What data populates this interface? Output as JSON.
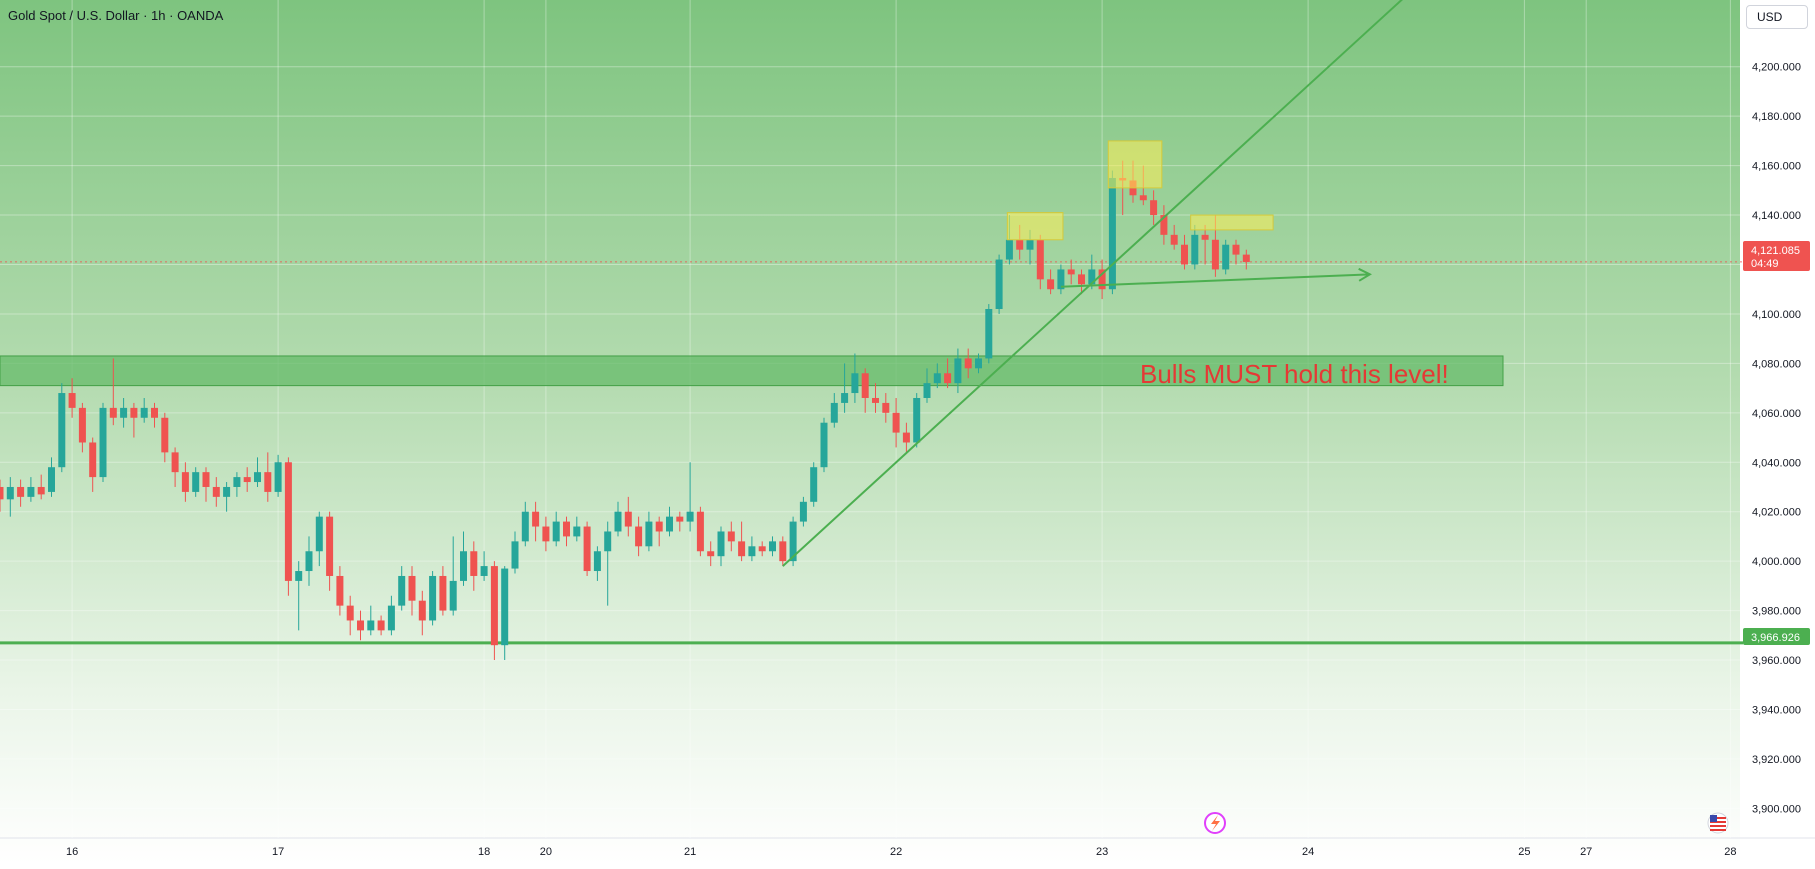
{
  "header": {
    "title": "Gold Spot / U.S. Dollar · 1h · OANDA",
    "currency_button": "USD"
  },
  "price_tag": {
    "price": "4,121.085",
    "countdown": "04:49"
  },
  "support_tag": {
    "price": "3,966.926"
  },
  "annotation": {
    "text": "Bulls MUST hold this level!"
  },
  "icons": {
    "bolt": "lightning-icon",
    "flag": "us-flag-icon"
  },
  "colors": {
    "up": "#26a69a",
    "down": "#ef5350",
    "trend": "#4caf50",
    "zone": "#66bb6a",
    "highlight": "#ffee58",
    "annotation": "#e53935"
  },
  "chart_data": {
    "type": "candlestick",
    "title": "Gold Spot / U.S. Dollar · 1h · OANDA",
    "ylim": [
      3888,
      4227
    ],
    "y_ticks": [
      {
        "v": 3900,
        "label": "3,900.000"
      },
      {
        "v": 3920,
        "label": "3,920.000"
      },
      {
        "v": 3940,
        "label": "3,940.000"
      },
      {
        "v": 3960,
        "label": "3,960.000"
      },
      {
        "v": 3980,
        "label": "3,980.000"
      },
      {
        "v": 4000,
        "label": "4,000.000"
      },
      {
        "v": 4020,
        "label": "4,020.000"
      },
      {
        "v": 4040,
        "label": "4,040.000"
      },
      {
        "v": 4060,
        "label": "4,060.000"
      },
      {
        "v": 4080,
        "label": "4,080.000"
      },
      {
        "v": 4100,
        "label": "4,100.000"
      },
      {
        "v": 4120,
        "label": "4,120.000"
      },
      {
        "v": 4140,
        "label": "4,140.000"
      },
      {
        "v": 4160,
        "label": "4,160.000"
      },
      {
        "v": 4180,
        "label": "4,180.000"
      },
      {
        "v": 4200,
        "label": "4,200.000"
      }
    ],
    "x_ticks": [
      {
        "i": 7,
        "label": "16"
      },
      {
        "i": 27,
        "label": "17"
      },
      {
        "i": 47,
        "label": "18"
      },
      {
        "i": 53,
        "label": "20"
      },
      {
        "i": 67,
        "label": "21"
      },
      {
        "i": 87,
        "label": "22"
      },
      {
        "i": 107,
        "label": "23"
      },
      {
        "i": 127,
        "label": "24"
      },
      {
        "i": 148,
        "label": "25"
      },
      {
        "i": 154,
        "label": "27"
      },
      {
        "i": 168,
        "label": "28"
      }
    ],
    "current_price": 4121.085,
    "support_level": 3966.926,
    "resistance_zone": [
      4071,
      4083
    ],
    "candles": [
      [
        4030,
        4025,
        4033,
        4020
      ],
      [
        4025,
        4030,
        4034,
        4018
      ],
      [
        4030,
        4026,
        4033,
        4022
      ],
      [
        4026,
        4030,
        4034,
        4024
      ],
      [
        4030,
        4027,
        4035,
        4025
      ],
      [
        4028,
        4038,
        4042,
        4026
      ],
      [
        4038,
        4068,
        4072,
        4036
      ],
      [
        4068,
        4062,
        4074,
        4058
      ],
      [
        4062,
        4048,
        4064,
        4044
      ],
      [
        4048,
        4034,
        4050,
        4028
      ],
      [
        4034,
        4062,
        4064,
        4032
      ],
      [
        4062,
        4058,
        4082,
        4055
      ],
      [
        4058,
        4062,
        4066,
        4054
      ],
      [
        4062,
        4058,
        4064,
        4050
      ],
      [
        4058,
        4062,
        4066,
        4056
      ],
      [
        4062,
        4058,
        4064,
        4054
      ],
      [
        4058,
        4044,
        4060,
        4040
      ],
      [
        4044,
        4036,
        4046,
        4030
      ],
      [
        4036,
        4028,
        4040,
        4024
      ],
      [
        4028,
        4036,
        4038,
        4026
      ],
      [
        4036,
        4030,
        4038,
        4024
      ],
      [
        4030,
        4026,
        4034,
        4022
      ],
      [
        4026,
        4030,
        4032,
        4020
      ],
      [
        4030,
        4034,
        4036,
        4026
      ],
      [
        4034,
        4032,
        4038,
        4028
      ],
      [
        4032,
        4036,
        4042,
        4030
      ],
      [
        4036,
        4028,
        4044,
        4024
      ],
      [
        4028,
        4040,
        4043,
        4026
      ],
      [
        4040,
        3992,
        4042,
        3986
      ],
      [
        3992,
        3996,
        4000,
        3972
      ],
      [
        3996,
        4004,
        4010,
        3990
      ],
      [
        4004,
        4018,
        4020,
        3998
      ],
      [
        4018,
        3994,
        4020,
        3988
      ],
      [
        3994,
        3982,
        3998,
        3978
      ],
      [
        3982,
        3976,
        3986,
        3970
      ],
      [
        3976,
        3972,
        3980,
        3968
      ],
      [
        3972,
        3976,
        3982,
        3970
      ],
      [
        3976,
        3972,
        3978,
        3970
      ],
      [
        3972,
        3982,
        3986,
        3970
      ],
      [
        3982,
        3994,
        3998,
        3980
      ],
      [
        3994,
        3984,
        3998,
        3978
      ],
      [
        3984,
        3976,
        3988,
        3970
      ],
      [
        3976,
        3994,
        3996,
        3974
      ],
      [
        3994,
        3980,
        3998,
        3978
      ],
      [
        3980,
        3992,
        4010,
        3978
      ],
      [
        3992,
        4004,
        4012,
        3990
      ],
      [
        4004,
        3994,
        4008,
        3988
      ],
      [
        3994,
        3998,
        4004,
        3992
      ],
      [
        3998,
        3966,
        4000,
        3960
      ],
      [
        3966,
        3997,
        3998,
        3960
      ],
      [
        3997,
        4008,
        4012,
        3995
      ],
      [
        4008,
        4020,
        4024,
        4006
      ],
      [
        4020,
        4014,
        4024,
        4008
      ],
      [
        4014,
        4008,
        4018,
        4004
      ],
      [
        4008,
        4016,
        4020,
        4006
      ],
      [
        4016,
        4010,
        4018,
        4006
      ],
      [
        4010,
        4014,
        4018,
        4008
      ],
      [
        4014,
        3996,
        4016,
        3994
      ],
      [
        3996,
        4004,
        4006,
        3992
      ],
      [
        4004,
        4012,
        4016,
        3982
      ],
      [
        4012,
        4020,
        4024,
        4010
      ],
      [
        4020,
        4014,
        4026,
        4010
      ],
      [
        4014,
        4006,
        4018,
        4002
      ],
      [
        4006,
        4016,
        4020,
        4004
      ],
      [
        4016,
        4012,
        4018,
        4006
      ],
      [
        4012,
        4018,
        4022,
        4010
      ],
      [
        4018,
        4016,
        4020,
        4012
      ],
      [
        4016,
        4020,
        4040,
        4012
      ],
      [
        4020,
        4004,
        4022,
        4002
      ],
      [
        4004,
        4002,
        4008,
        3998
      ],
      [
        4002,
        4012,
        4014,
        3998
      ],
      [
        4012,
        4008,
        4016,
        4004
      ],
      [
        4008,
        4002,
        4016,
        4000
      ],
      [
        4002,
        4006,
        4010,
        4000
      ],
      [
        4006,
        4004,
        4008,
        4002
      ],
      [
        4004,
        4008,
        4010,
        4002
      ],
      [
        4008,
        4000,
        4010,
        3998
      ],
      [
        4000,
        4016,
        4018,
        3998
      ],
      [
        4016,
        4024,
        4026,
        4014
      ],
      [
        4024,
        4038,
        4040,
        4022
      ],
      [
        4038,
        4056,
        4058,
        4036
      ],
      [
        4056,
        4064,
        4068,
        4054
      ],
      [
        4064,
        4068,
        4080,
        4060
      ],
      [
        4068,
        4076,
        4084,
        4064
      ],
      [
        4076,
        4066,
        4078,
        4060
      ],
      [
        4066,
        4064,
        4072,
        4060
      ],
      [
        4064,
        4060,
        4068,
        4056
      ],
      [
        4060,
        4052,
        4066,
        4046
      ],
      [
        4052,
        4048,
        4056,
        4044
      ],
      [
        4048,
        4066,
        4068,
        4046
      ],
      [
        4066,
        4072,
        4078,
        4064
      ],
      [
        4072,
        4076,
        4080,
        4070
      ],
      [
        4076,
        4072,
        4082,
        4070
      ],
      [
        4072,
        4082,
        4086,
        4068
      ],
      [
        4082,
        4078,
        4086,
        4074
      ],
      [
        4078,
        4082,
        4084,
        4076
      ],
      [
        4082,
        4102,
        4104,
        4080
      ],
      [
        4102,
        4122,
        4124,
        4100
      ],
      [
        4122,
        4130,
        4140,
        4120
      ],
      [
        4130,
        4126,
        4136,
        4122
      ],
      [
        4126,
        4130,
        4134,
        4120
      ],
      [
        4130,
        4114,
        4132,
        4110
      ],
      [
        4114,
        4110,
        4118,
        4108
      ],
      [
        4110,
        4118,
        4120,
        4108
      ],
      [
        4118,
        4116,
        4122,
        4112
      ],
      [
        4116,
        4112,
        4118,
        4108
      ],
      [
        4112,
        4118,
        4124,
        4110
      ],
      [
        4118,
        4110,
        4122,
        4106
      ],
      [
        4110,
        4155,
        4158,
        4108
      ],
      [
        4155,
        4154,
        4162,
        4140
      ],
      [
        4154,
        4148,
        4162,
        4145
      ],
      [
        4148,
        4146,
        4160,
        4144
      ],
      [
        4146,
        4140,
        4150,
        4136
      ],
      [
        4140,
        4132,
        4144,
        4128
      ],
      [
        4132,
        4128,
        4136,
        4126
      ],
      [
        4128,
        4120,
        4132,
        4118
      ],
      [
        4120,
        4132,
        4136,
        4118
      ],
      [
        4132,
        4130,
        4136,
        4120
      ],
      [
        4130,
        4118,
        4140,
        4115
      ],
      [
        4118,
        4128,
        4130,
        4116
      ],
      [
        4128,
        4124,
        4130,
        4120
      ],
      [
        4124,
        4121,
        4126,
        4118
      ]
    ],
    "trendlines": [
      {
        "from": [
          76,
          3998
        ],
        "to": [
          140,
          4242
        ]
      },
      {
        "from": [
          103,
          4111
        ],
        "to": [
          133,
          4116
        ]
      }
    ],
    "highlight_boxes": [
      {
        "i0": 97.8,
        "i1": 103.2,
        "p0": 4130,
        "p1": 4141
      },
      {
        "i0": 107.6,
        "i1": 112.8,
        "p0": 4151,
        "p1": 4170
      },
      {
        "i0": 115.6,
        "i1": 123.6,
        "p0": 4134,
        "p1": 4140
      }
    ]
  }
}
